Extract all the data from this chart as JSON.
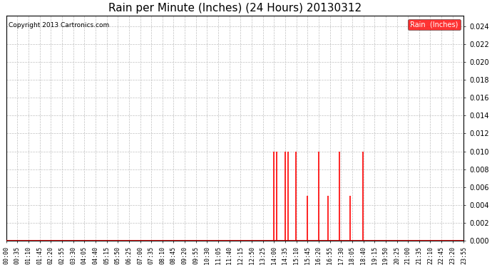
{
  "title": "Rain per Minute (Inches) (24 Hours) 20130312",
  "copyright": "Copyright 2013 Cartronics.com",
  "legend_label": "Rain  (Inches)",
  "legend_bg": "#ff0000",
  "legend_fg": "#ffffff",
  "line_color": "#ff0000",
  "baseline_color": "#ff0000",
  "ylim": [
    0.0,
    0.0252
  ],
  "yticks": [
    0.0,
    0.002,
    0.004,
    0.006,
    0.008,
    0.01,
    0.012,
    0.014,
    0.016,
    0.018,
    0.02,
    0.022,
    0.024
  ],
  "bg_color": "#ffffff",
  "grid_color": "#c0c0c0",
  "title_fontsize": 11,
  "tick_fontsize": 6,
  "rain_events": [
    {
      "time_min": 839,
      "value": 0.01
    },
    {
      "time_min": 849,
      "value": 0.01
    },
    {
      "time_min": 874,
      "value": 0.01
    },
    {
      "time_min": 884,
      "value": 0.01
    },
    {
      "time_min": 909,
      "value": 0.01
    },
    {
      "time_min": 944,
      "value": 0.005
    },
    {
      "time_min": 979,
      "value": 0.01
    },
    {
      "time_min": 1009,
      "value": 0.005
    },
    {
      "time_min": 1044,
      "value": 0.01
    },
    {
      "time_min": 1079,
      "value": 0.005
    },
    {
      "time_min": 1119,
      "value": 0.01
    }
  ],
  "time_step_minutes": 35,
  "total_minutes": 1440
}
